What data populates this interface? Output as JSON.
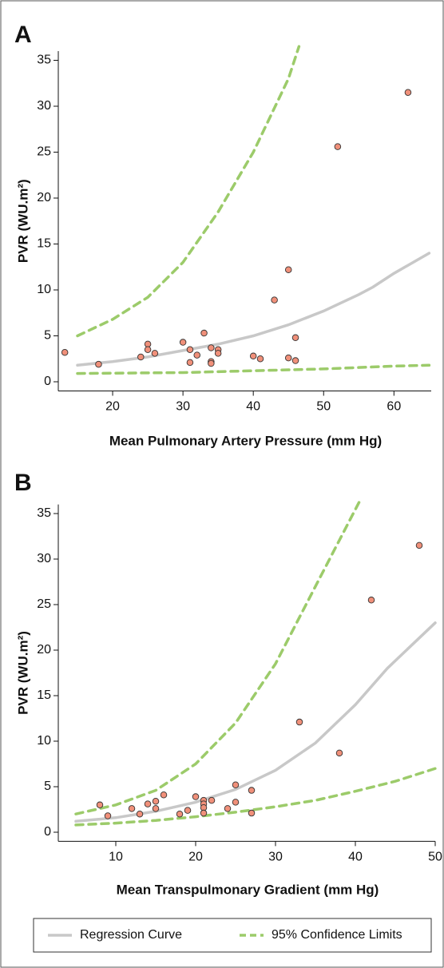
{
  "chart_data": [
    {
      "type": "scatter",
      "label": "A",
      "xlabel": "Mean Pulmonary Artery Pressure (mm Hg)",
      "ylabel": "PVR (WU.m²)",
      "xlim": [
        12.5,
        65.3
      ],
      "ylim": [
        -1,
        36
      ],
      "xticks": [
        20,
        30,
        40,
        50,
        60
      ],
      "yticks": [
        0,
        5,
        10,
        15,
        20,
        25,
        30,
        35
      ],
      "series": [
        {
          "type": "scatter",
          "color": "#f0907a",
          "x": [
            13.2,
            18,
            24,
            25,
            25,
            26,
            30,
            31,
            31,
            32,
            33,
            34,
            34,
            34,
            35,
            35,
            40,
            41,
            43,
            45,
            45,
            46,
            46,
            52,
            62
          ],
          "values": [
            3.2,
            1.9,
            2.7,
            4.1,
            3.5,
            3.1,
            4.3,
            3.5,
            2.1,
            2.9,
            5.3,
            3.7,
            2.2,
            2.0,
            3.5,
            3.1,
            2.8,
            2.5,
            8.9,
            12.2,
            2.6,
            4.8,
            2.3,
            25.6,
            31.5
          ]
        },
        {
          "type": "line",
          "style": "solid",
          "color": "#c8c8c8",
          "x": [
            15,
            20,
            25,
            30,
            35,
            40,
            45,
            50,
            55,
            57,
            60,
            65
          ],
          "values": [
            1.8,
            2.2,
            2.7,
            3.4,
            4.1,
            5.0,
            6.2,
            7.7,
            9.5,
            10.3,
            11.8,
            14
          ]
        },
        {
          "type": "line",
          "style": "dashed",
          "color": "#9ccb6a",
          "x": [
            15,
            20,
            25,
            30,
            35,
            40,
            45,
            46.5
          ],
          "values": [
            5.0,
            6.8,
            9.2,
            13,
            18.5,
            25,
            33,
            36.5
          ]
        },
        {
          "type": "line",
          "style": "dashed",
          "color": "#9ccb6a",
          "x": [
            15,
            30,
            40,
            50,
            60,
            65
          ],
          "values": [
            0.9,
            1.0,
            1.2,
            1.4,
            1.7,
            1.8
          ]
        }
      ]
    },
    {
      "type": "scatter",
      "label": "B",
      "xlabel": "Mean Transpulmonary Gradient (mm Hg)",
      "ylabel": "PVR (WU.m²)",
      "xlim": [
        3,
        50
      ],
      "ylim": [
        -1,
        36
      ],
      "xticks": [
        10,
        20,
        30,
        40,
        50
      ],
      "yticks": [
        0,
        5,
        10,
        15,
        20,
        25,
        30,
        35
      ],
      "series": [
        {
          "type": "scatter",
          "color": "#f0907a",
          "x": [
            8,
            9,
            12,
            13,
            14,
            15,
            15,
            16,
            18,
            19,
            20,
            21,
            21,
            21,
            21,
            22,
            24,
            25,
            25,
            27,
            27,
            33,
            38,
            42,
            48
          ],
          "values": [
            3.0,
            1.8,
            2.6,
            2.0,
            3.1,
            3.4,
            2.6,
            4.1,
            2.0,
            2.4,
            3.9,
            3.5,
            3.1,
            2.7,
            2.1,
            3.5,
            2.6,
            5.2,
            3.3,
            4.6,
            2.1,
            12.1,
            8.7,
            25.5,
            31.5
          ]
        },
        {
          "type": "line",
          "style": "solid",
          "color": "#c8c8c8",
          "x": [
            5,
            10,
            15,
            20,
            25,
            30,
            35,
            40,
            44,
            50
          ],
          "values": [
            1.2,
            1.6,
            2.3,
            3.3,
            4.7,
            6.8,
            9.8,
            14,
            18,
            23
          ]
        },
        {
          "type": "line",
          "style": "dashed",
          "color": "#9ccb6a",
          "x": [
            5,
            10,
            15,
            20,
            25,
            30,
            35,
            40.5
          ],
          "values": [
            2.0,
            3.0,
            4.6,
            7.5,
            12,
            18.5,
            27,
            36.3
          ]
        },
        {
          "type": "line",
          "style": "dashed",
          "color": "#9ccb6a",
          "x": [
            5,
            10,
            15,
            20,
            25,
            30,
            35,
            40,
            45,
            50
          ],
          "values": [
            0.8,
            1.0,
            1.3,
            1.7,
            2.2,
            2.8,
            3.5,
            4.5,
            5.6,
            7.0
          ]
        }
      ]
    }
  ],
  "legend": [
    {
      "label": "Regression Curve",
      "color": "#c8c8c8",
      "style": "solid"
    },
    {
      "label": "95% Confidence Limits",
      "color": "#9ccb6a",
      "style": "dashed"
    }
  ]
}
